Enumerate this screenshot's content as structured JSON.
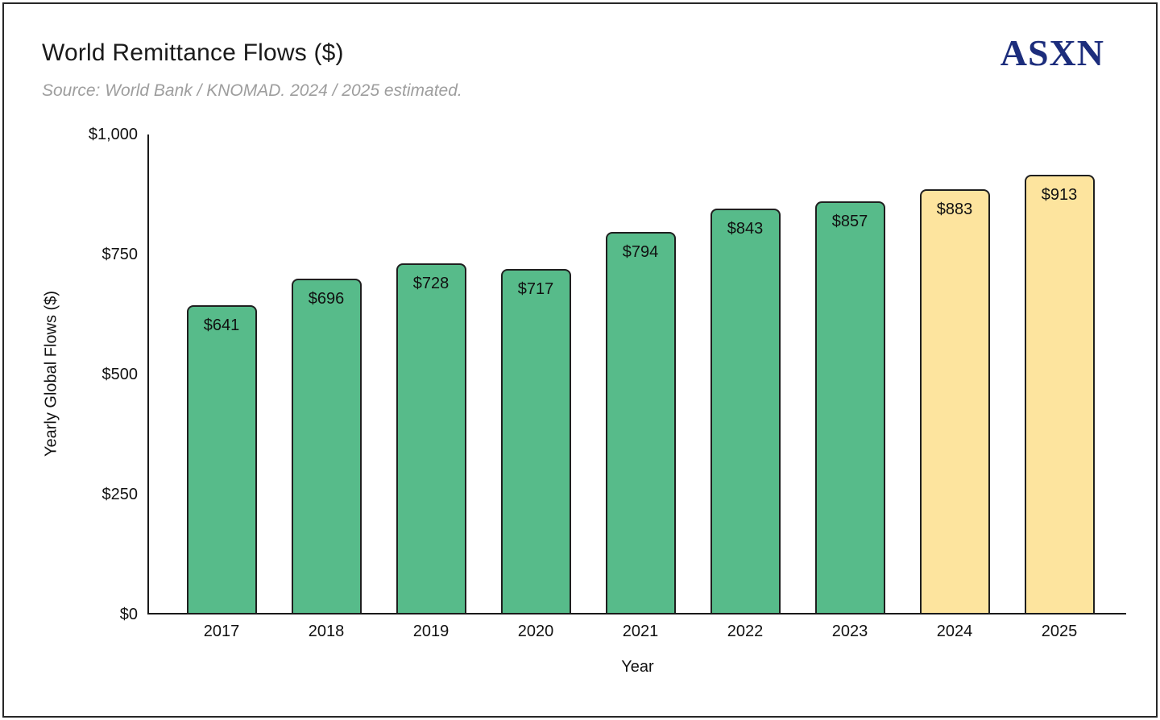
{
  "frame": {
    "background": "#ffffff",
    "border_color": "#272727"
  },
  "header": {
    "title": "World Remittance Flows ($)",
    "subtitle": "Source: World Bank / KNOMAD. 2024 / 2025 estimated.",
    "logo_text": "ASXN",
    "logo_color": "#1c2d7c"
  },
  "chart_data": {
    "type": "bar",
    "title": "World Remittance Flows ($)",
    "xlabel": "Year",
    "ylabel": "Yearly Global Flows ($)",
    "ylim": [
      0,
      1000
    ],
    "yticks": [
      {
        "value": 0,
        "label": "$0"
      },
      {
        "value": 250,
        "label": "$250"
      },
      {
        "value": 500,
        "label": "$500"
      },
      {
        "value": 750,
        "label": "$750"
      },
      {
        "value": 1000,
        "label": "$1,000"
      }
    ],
    "grid": false,
    "legend": "none",
    "axis_color": "#1a1a1a",
    "bar_border_color": "#1f1f1f",
    "actual_color": "#57bb8a",
    "estimated_color": "#fde49e",
    "categories": [
      "2017",
      "2018",
      "2019",
      "2020",
      "2021",
      "2022",
      "2023",
      "2024",
      "2025"
    ],
    "values": [
      641,
      696,
      728,
      717,
      794,
      843,
      857,
      883,
      913
    ],
    "bars": [
      {
        "category": "2017",
        "value": 641,
        "label": "$641",
        "estimated": false
      },
      {
        "category": "2018",
        "value": 696,
        "label": "$696",
        "estimated": false
      },
      {
        "category": "2019",
        "value": 728,
        "label": "$728",
        "estimated": false
      },
      {
        "category": "2020",
        "value": 717,
        "label": "$717",
        "estimated": false
      },
      {
        "category": "2021",
        "value": 794,
        "label": "$794",
        "estimated": false
      },
      {
        "category": "2022",
        "value": 843,
        "label": "$843",
        "estimated": false
      },
      {
        "category": "2023",
        "value": 857,
        "label": "$857",
        "estimated": false
      },
      {
        "category": "2024",
        "value": 883,
        "label": "$883",
        "estimated": true
      },
      {
        "category": "2025",
        "value": 913,
        "label": "$913",
        "estimated": true
      }
    ]
  }
}
